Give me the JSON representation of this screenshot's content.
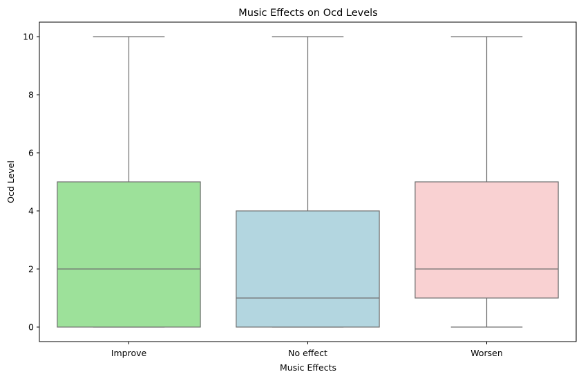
{
  "chart_data": {
    "type": "box",
    "title": "Music Effects on Ocd Levels",
    "xlabel": "Music Effects",
    "ylabel": "Ocd Level",
    "categories": [
      "Improve",
      "No effect",
      "Worsen"
    ],
    "boxes": [
      {
        "category": "Improve",
        "min": 0,
        "q1": 0,
        "median": 2,
        "q3": 5,
        "max": 10,
        "color": "#9de19a"
      },
      {
        "category": "No effect",
        "min": 0,
        "q1": 0,
        "median": 1,
        "q3": 4,
        "max": 10,
        "color": "#b3d6e0"
      },
      {
        "category": "Worsen",
        "min": 0,
        "q1": 1,
        "median": 2,
        "q3": 5,
        "max": 10,
        "color": "#f9d1d2"
      }
    ],
    "ylim": [
      -0.5,
      10.5
    ],
    "yticks": [
      0,
      2,
      4,
      6,
      8,
      10
    ],
    "grid": false,
    "line_color": "#707070"
  }
}
